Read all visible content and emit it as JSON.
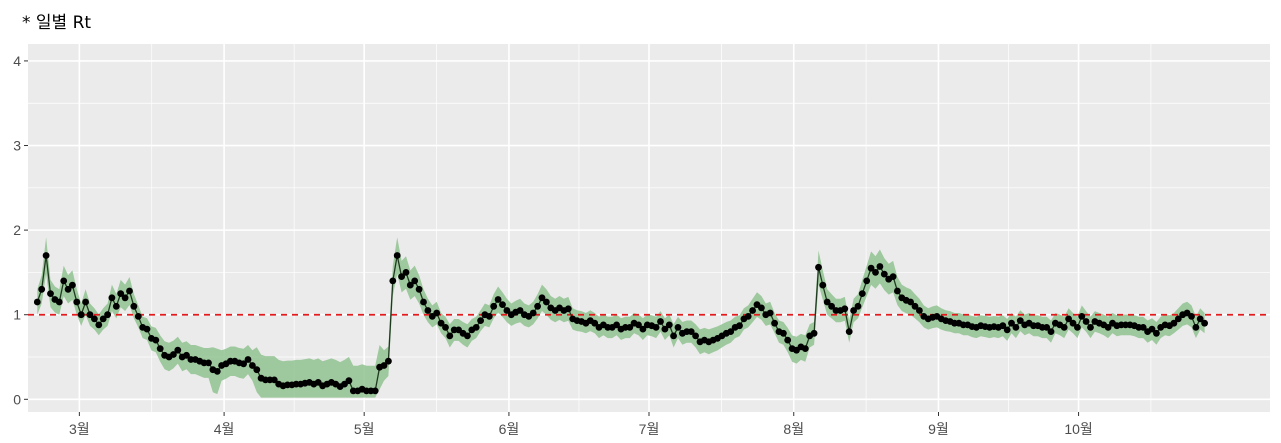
{
  "chart_data": {
    "type": "line",
    "title": "* 일별 Rt",
    "xlabel": "",
    "ylabel": "",
    "x_start": "2021-02-20",
    "x_end": "2021-10-28",
    "xlim": [
      "2021-02-18",
      "2021-11-11"
    ],
    "ylim": [
      -0.15,
      4.2
    ],
    "yticks": [
      0,
      1,
      2,
      3,
      4
    ],
    "ytick_labels": [
      "0",
      "1",
      "2",
      "3",
      "4"
    ],
    "xticks": [
      {
        "date": "2021-03-01",
        "label": "3월"
      },
      {
        "date": "2021-04-01",
        "label": "4월"
      },
      {
        "date": "2021-05-01",
        "label": "5월"
      },
      {
        "date": "2021-06-01",
        "label": "6월"
      },
      {
        "date": "2021-07-01",
        "label": "7월"
      },
      {
        "date": "2021-08-01",
        "label": "8월"
      },
      {
        "date": "2021-09-01",
        "label": "9월"
      },
      {
        "date": "2021-10-01",
        "label": "10월"
      }
    ],
    "reference_line": {
      "y": 1,
      "style": "dashed",
      "color": "#e41a1c"
    },
    "grid": true,
    "colors": {
      "panel": "#ebebeb",
      "grid": "#ffffff",
      "band": "#90c290",
      "line": "#1f3a1f",
      "point": "#000000"
    },
    "series": [
      {
        "values": [
          1.15,
          1.3,
          1.7,
          1.25,
          1.18,
          1.15,
          1.4,
          1.3,
          1.35,
          1.15,
          1.0,
          1.15,
          1.0,
          0.95,
          0.88,
          0.95,
          1.0,
          1.2,
          1.1,
          1.25,
          1.2,
          1.28,
          1.1,
          0.98,
          0.85,
          0.83,
          0.72,
          0.7,
          0.6,
          0.52,
          0.5,
          0.53,
          0.58,
          0.5,
          0.52,
          0.47,
          0.47,
          0.45,
          0.43,
          0.43,
          0.35,
          0.33,
          0.4,
          0.42,
          0.45,
          0.45,
          0.43,
          0.42,
          0.47,
          0.4,
          0.35,
          0.25,
          0.23,
          0.23,
          0.23,
          0.18,
          0.16,
          0.17,
          0.17,
          0.18,
          0.18,
          0.19,
          0.2,
          0.18,
          0.2,
          0.16,
          0.18,
          0.2,
          0.18,
          0.15,
          0.18,
          0.22,
          0.1,
          0.1,
          0.12,
          0.1,
          0.1,
          0.1,
          0.38,
          0.4,
          0.45,
          1.4,
          1.7,
          1.45,
          1.5,
          1.35,
          1.4,
          1.3,
          1.15,
          1.05,
          0.98,
          1.02,
          0.9,
          0.85,
          0.75,
          0.82,
          0.82,
          0.78,
          0.75,
          0.82,
          0.85,
          0.93,
          1.0,
          0.98,
          1.1,
          1.18,
          1.12,
          1.05,
          1.0,
          1.03,
          1.05,
          1.0,
          0.98,
          1.02,
          1.1,
          1.2,
          1.15,
          1.08,
          1.05,
          1.08,
          1.05,
          1.07,
          0.95,
          0.93,
          0.92,
          0.9,
          0.93,
          0.9,
          0.85,
          0.88,
          0.85,
          0.85,
          0.88,
          0.83,
          0.85,
          0.85,
          0.9,
          0.88,
          0.83,
          0.88,
          0.87,
          0.85,
          0.92,
          0.83,
          0.88,
          0.75,
          0.85,
          0.78,
          0.8,
          0.8,
          0.75,
          0.68,
          0.7,
          0.68,
          0.7,
          0.72,
          0.75,
          0.78,
          0.8,
          0.85,
          0.87,
          0.95,
          0.98,
          1.05,
          1.12,
          1.08,
          1.0,
          1.02,
          0.9,
          0.8,
          0.78,
          0.7,
          0.6,
          0.58,
          0.62,
          0.6,
          0.75,
          0.78,
          1.56,
          1.35,
          1.15,
          1.1,
          1.05,
          1.05,
          1.07,
          0.8,
          1.05,
          1.1,
          1.25,
          1.4,
          1.55,
          1.5,
          1.57,
          1.48,
          1.42,
          1.45,
          1.28,
          1.2,
          1.17,
          1.15,
          1.1,
          1.05,
          0.98,
          0.95,
          0.97,
          0.98,
          0.95,
          0.93,
          0.92,
          0.9,
          0.9,
          0.88,
          0.88,
          0.86,
          0.85,
          0.87,
          0.86,
          0.85,
          0.86,
          0.85,
          0.87,
          0.82,
          0.9,
          0.85,
          0.93,
          0.88,
          0.9,
          0.87,
          0.87,
          0.85,
          0.85,
          0.8,
          0.9,
          0.88,
          0.85,
          0.95,
          0.9,
          0.85,
          0.98,
          0.92,
          0.85,
          0.92,
          0.9,
          0.88,
          0.85,
          0.9,
          0.87,
          0.88,
          0.88,
          0.88,
          0.87,
          0.85,
          0.85,
          0.8,
          0.83,
          0.78,
          0.85,
          0.88,
          0.87,
          0.9,
          0.95,
          1.0,
          1.02,
          0.98,
          0.85,
          0.95,
          0.9
        ]
      }
    ]
  }
}
